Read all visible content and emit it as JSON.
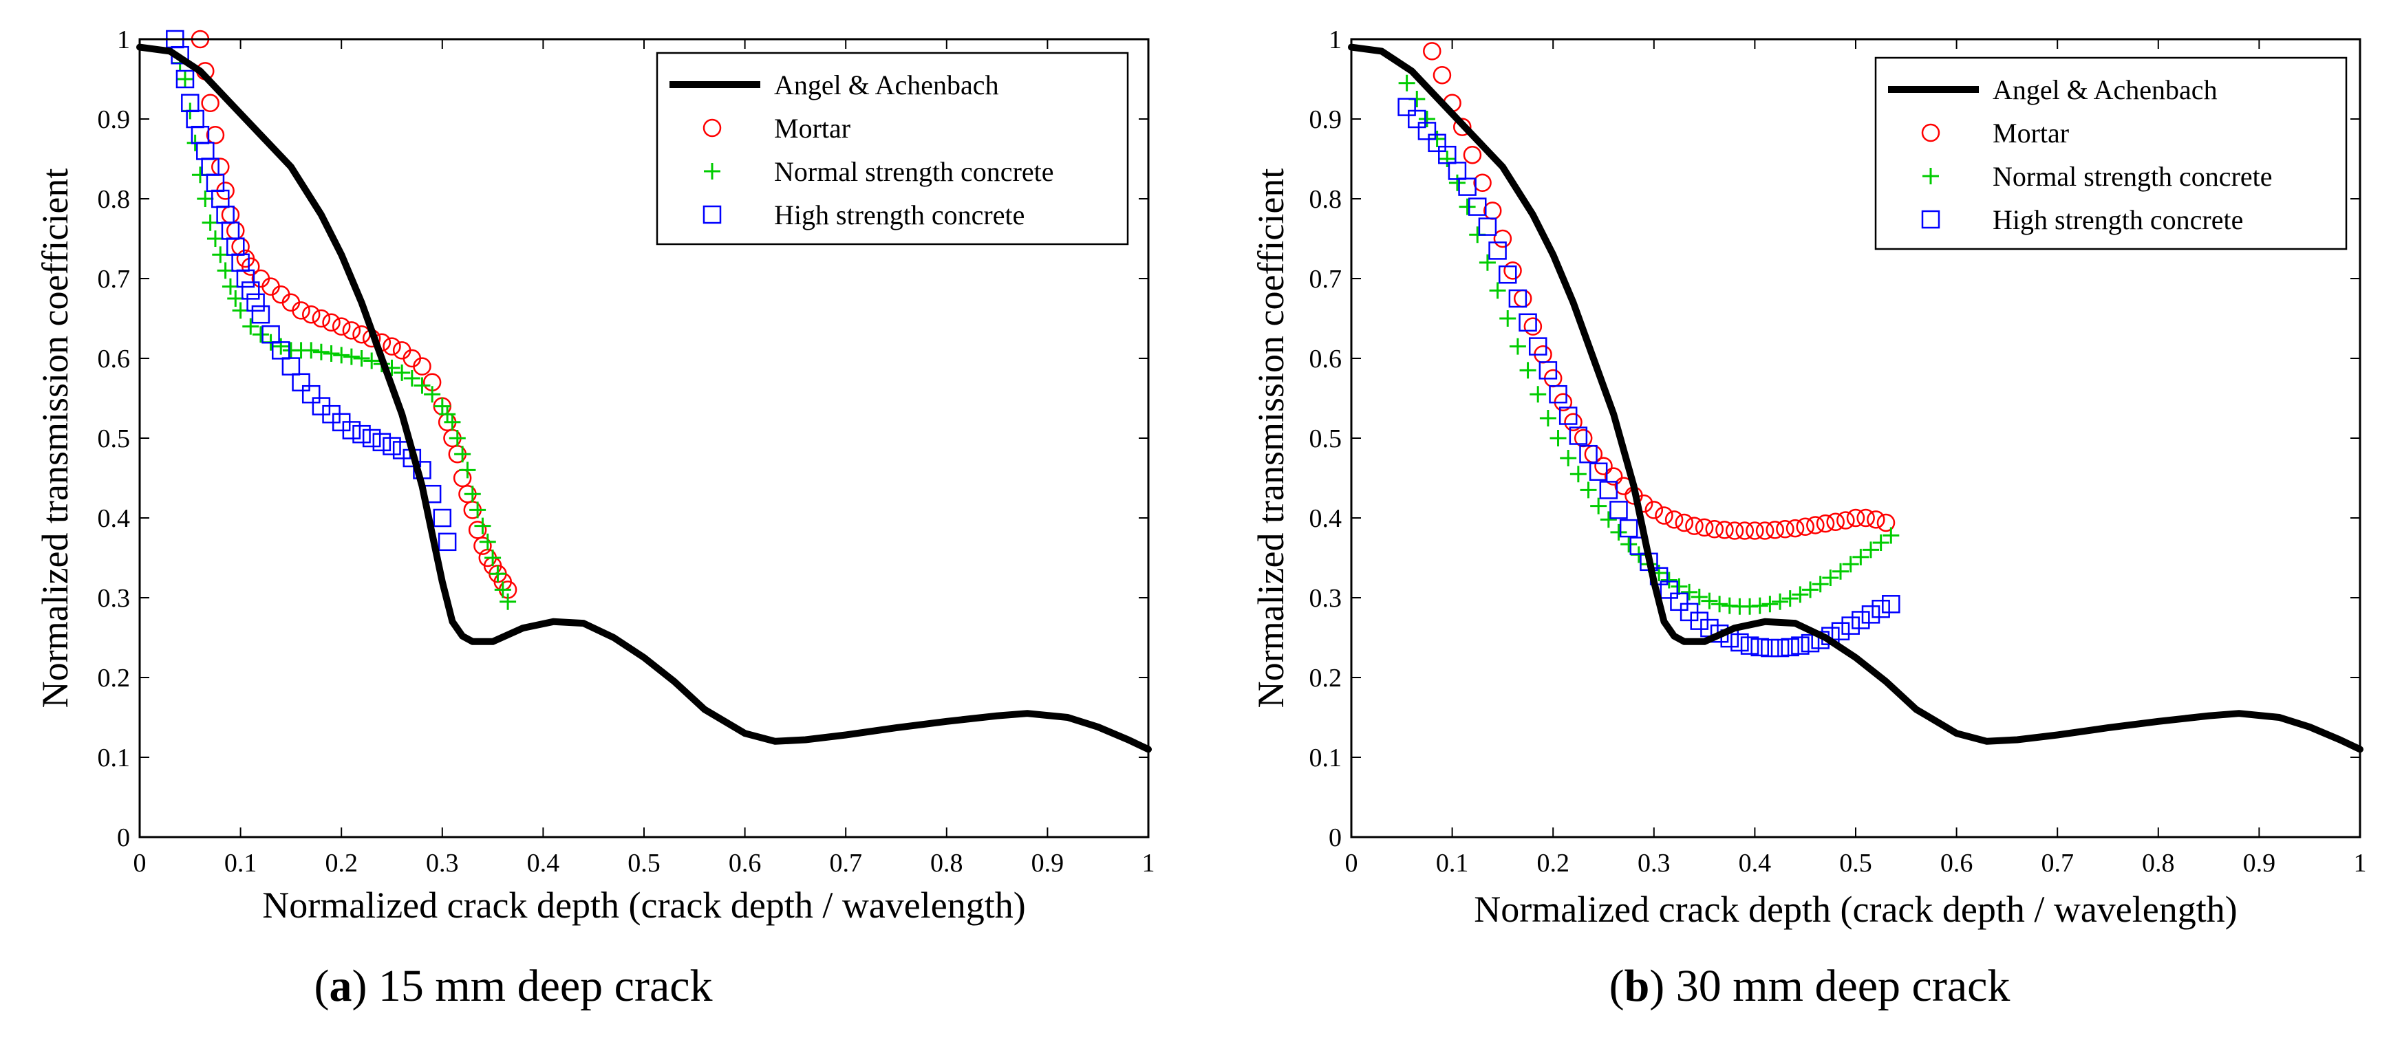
{
  "chart_data": [
    {
      "type": "line",
      "panel_id": "a",
      "caption": {
        "letter": "a",
        "text": "15 mm deep crack"
      },
      "title": "",
      "xlabel": "Normalized crack depth (crack depth / wavelength)",
      "ylabel": "Normalized transmission coefficient",
      "xlim": [
        0,
        1
      ],
      "ylim": [
        0,
        1
      ],
      "xticks": [
        0,
        0.1,
        0.2,
        0.3,
        0.4,
        0.5,
        0.6,
        0.7,
        0.8,
        0.9,
        1
      ],
      "yticks": [
        0,
        0.1,
        0.2,
        0.3,
        0.4,
        0.5,
        0.6,
        0.7,
        0.8,
        0.9,
        1
      ],
      "xtick_labels": [
        "0",
        "0.1",
        "0.2",
        "0.3",
        "0.4",
        "0.5",
        "0.6",
        "0.7",
        "0.8",
        "0.9",
        "1"
      ],
      "ytick_labels": [
        "0",
        "0.1",
        "0.2",
        "0.3",
        "0.4",
        "0.5",
        "0.6",
        "0.7",
        "0.8",
        "0.9",
        "1"
      ],
      "grid": false,
      "legend_position": "top-right",
      "series": [
        {
          "name": "Angel & Achenbach",
          "style": "line",
          "color": "#000000",
          "x": [
            0,
            0.03,
            0.06,
            0.09,
            0.12,
            0.15,
            0.18,
            0.2,
            0.22,
            0.24,
            0.26,
            0.28,
            0.29,
            0.3,
            0.31,
            0.32,
            0.33,
            0.35,
            0.38,
            0.41,
            0.44,
            0.47,
            0.5,
            0.53,
            0.56,
            0.6,
            0.63,
            0.66,
            0.7,
            0.75,
            0.8,
            0.85,
            0.88,
            0.92,
            0.95,
            0.98,
            1.0
          ],
          "y": [
            0.99,
            0.985,
            0.96,
            0.92,
            0.88,
            0.84,
            0.78,
            0.73,
            0.67,
            0.6,
            0.53,
            0.44,
            0.38,
            0.32,
            0.27,
            0.252,
            0.245,
            0.245,
            0.262,
            0.27,
            0.268,
            0.25,
            0.225,
            0.195,
            0.16,
            0.13,
            0.12,
            0.122,
            0.128,
            0.137,
            0.145,
            0.152,
            0.155,
            0.15,
            0.138,
            0.122,
            0.11
          ]
        },
        {
          "name": "Mortar",
          "style": "circle",
          "color": "#ff0000",
          "x": [
            0.06,
            0.065,
            0.07,
            0.075,
            0.08,
            0.085,
            0.09,
            0.095,
            0.1,
            0.105,
            0.11,
            0.12,
            0.13,
            0.14,
            0.15,
            0.16,
            0.17,
            0.18,
            0.19,
            0.2,
            0.21,
            0.22,
            0.23,
            0.24,
            0.25,
            0.26,
            0.27,
            0.28,
            0.29,
            0.3,
            0.305,
            0.31,
            0.315,
            0.32,
            0.325,
            0.33,
            0.335,
            0.34,
            0.345,
            0.35,
            0.355,
            0.36,
            0.365
          ],
          "y": [
            1.0,
            0.96,
            0.92,
            0.88,
            0.84,
            0.81,
            0.78,
            0.76,
            0.74,
            0.725,
            0.715,
            0.7,
            0.69,
            0.68,
            0.67,
            0.66,
            0.655,
            0.65,
            0.645,
            0.64,
            0.635,
            0.63,
            0.625,
            0.62,
            0.615,
            0.61,
            0.6,
            0.59,
            0.57,
            0.54,
            0.52,
            0.5,
            0.48,
            0.45,
            0.43,
            0.41,
            0.385,
            0.365,
            0.35,
            0.34,
            0.33,
            0.32,
            0.31
          ]
        },
        {
          "name": "Normal strength concrete",
          "style": "plus",
          "color": "#00cc00",
          "x": [
            0.04,
            0.045,
            0.05,
            0.055,
            0.06,
            0.065,
            0.07,
            0.075,
            0.08,
            0.085,
            0.09,
            0.095,
            0.1,
            0.11,
            0.12,
            0.13,
            0.14,
            0.15,
            0.16,
            0.17,
            0.18,
            0.19,
            0.2,
            0.21,
            0.22,
            0.23,
            0.24,
            0.25,
            0.26,
            0.27,
            0.28,
            0.29,
            0.3,
            0.305,
            0.31,
            0.315,
            0.32,
            0.325,
            0.33,
            0.335,
            0.34,
            0.345,
            0.35,
            0.355,
            0.36,
            0.365
          ],
          "y": [
            0.97,
            0.95,
            0.91,
            0.87,
            0.83,
            0.8,
            0.77,
            0.75,
            0.73,
            0.71,
            0.69,
            0.675,
            0.66,
            0.64,
            0.63,
            0.62,
            0.615,
            0.61,
            0.61,
            0.61,
            0.608,
            0.606,
            0.604,
            0.602,
            0.6,
            0.597,
            0.593,
            0.588,
            0.582,
            0.575,
            0.566,
            0.555,
            0.54,
            0.53,
            0.52,
            0.5,
            0.48,
            0.46,
            0.43,
            0.41,
            0.39,
            0.37,
            0.35,
            0.33,
            0.31,
            0.295
          ]
        },
        {
          "name": "High strength concrete",
          "style": "square",
          "color": "#0000ff",
          "x": [
            0.035,
            0.04,
            0.045,
            0.05,
            0.055,
            0.06,
            0.065,
            0.07,
            0.075,
            0.08,
            0.085,
            0.09,
            0.095,
            0.1,
            0.105,
            0.11,
            0.115,
            0.12,
            0.13,
            0.14,
            0.15,
            0.16,
            0.17,
            0.18,
            0.19,
            0.2,
            0.21,
            0.22,
            0.23,
            0.24,
            0.25,
            0.26,
            0.27,
            0.28,
            0.29,
            0.3,
            0.305
          ],
          "y": [
            1.0,
            0.98,
            0.95,
            0.92,
            0.9,
            0.88,
            0.86,
            0.84,
            0.82,
            0.8,
            0.78,
            0.76,
            0.74,
            0.72,
            0.7,
            0.685,
            0.67,
            0.655,
            0.63,
            0.61,
            0.59,
            0.57,
            0.555,
            0.54,
            0.53,
            0.52,
            0.51,
            0.505,
            0.5,
            0.495,
            0.49,
            0.485,
            0.475,
            0.46,
            0.43,
            0.4,
            0.37
          ]
        }
      ]
    },
    {
      "type": "line",
      "panel_id": "b",
      "caption": {
        "letter": "b",
        "text": "30 mm deep crack"
      },
      "title": "",
      "xlabel": "Normalized crack depth (crack depth / wavelength)",
      "ylabel": "Normalized transmission coefficient",
      "xlim": [
        0,
        1
      ],
      "ylim": [
        0,
        1
      ],
      "xticks": [
        0,
        0.1,
        0.2,
        0.3,
        0.4,
        0.5,
        0.6,
        0.7,
        0.8,
        0.9,
        1
      ],
      "yticks": [
        0,
        0.1,
        0.2,
        0.3,
        0.4,
        0.5,
        0.6,
        0.7,
        0.8,
        0.9,
        1
      ],
      "xtick_labels": [
        "0",
        "0.1",
        "0.2",
        "0.3",
        "0.4",
        "0.5",
        "0.6",
        "0.7",
        "0.8",
        "0.9",
        "1"
      ],
      "ytick_labels": [
        "0",
        "0.1",
        "0.2",
        "0.3",
        "0.4",
        "0.5",
        "0.6",
        "0.7",
        "0.8",
        "0.9",
        "1"
      ],
      "grid": false,
      "legend_position": "top-right",
      "series": [
        {
          "name": "Angel & Achenbach",
          "style": "line",
          "color": "#000000",
          "x": [
            0,
            0.03,
            0.06,
            0.09,
            0.12,
            0.15,
            0.18,
            0.2,
            0.22,
            0.24,
            0.26,
            0.28,
            0.29,
            0.3,
            0.31,
            0.32,
            0.33,
            0.35,
            0.38,
            0.41,
            0.44,
            0.47,
            0.5,
            0.53,
            0.56,
            0.6,
            0.63,
            0.66,
            0.7,
            0.75,
            0.8,
            0.85,
            0.88,
            0.92,
            0.95,
            0.98,
            1.0
          ],
          "y": [
            0.99,
            0.985,
            0.96,
            0.92,
            0.88,
            0.84,
            0.78,
            0.73,
            0.67,
            0.6,
            0.53,
            0.44,
            0.38,
            0.32,
            0.27,
            0.252,
            0.245,
            0.245,
            0.262,
            0.27,
            0.268,
            0.25,
            0.225,
            0.195,
            0.16,
            0.13,
            0.12,
            0.122,
            0.128,
            0.137,
            0.145,
            0.152,
            0.155,
            0.15,
            0.138,
            0.122,
            0.11
          ]
        },
        {
          "name": "Mortar",
          "style": "circle",
          "color": "#ff0000",
          "x": [
            0.08,
            0.09,
            0.1,
            0.11,
            0.12,
            0.13,
            0.14,
            0.15,
            0.16,
            0.17,
            0.18,
            0.19,
            0.2,
            0.21,
            0.22,
            0.23,
            0.24,
            0.25,
            0.26,
            0.27,
            0.28,
            0.29,
            0.3,
            0.31,
            0.32,
            0.33,
            0.34,
            0.35,
            0.36,
            0.37,
            0.38,
            0.39,
            0.4,
            0.41,
            0.42,
            0.43,
            0.44,
            0.45,
            0.46,
            0.47,
            0.48,
            0.49,
            0.5,
            0.51,
            0.52,
            0.53
          ],
          "y": [
            0.985,
            0.955,
            0.92,
            0.89,
            0.855,
            0.82,
            0.785,
            0.75,
            0.71,
            0.675,
            0.64,
            0.605,
            0.575,
            0.545,
            0.52,
            0.5,
            0.48,
            0.465,
            0.452,
            0.44,
            0.428,
            0.418,
            0.41,
            0.403,
            0.398,
            0.394,
            0.39,
            0.388,
            0.386,
            0.385,
            0.384,
            0.384,
            0.384,
            0.384,
            0.385,
            0.386,
            0.387,
            0.389,
            0.391,
            0.393,
            0.395,
            0.397,
            0.4,
            0.4,
            0.398,
            0.394
          ]
        },
        {
          "name": "Normal strength concrete",
          "style": "plus",
          "color": "#00cc00",
          "x": [
            0.055,
            0.065,
            0.075,
            0.085,
            0.095,
            0.105,
            0.115,
            0.125,
            0.135,
            0.145,
            0.155,
            0.165,
            0.175,
            0.185,
            0.195,
            0.205,
            0.215,
            0.225,
            0.235,
            0.245,
            0.255,
            0.265,
            0.275,
            0.285,
            0.295,
            0.305,
            0.315,
            0.325,
            0.335,
            0.345,
            0.355,
            0.365,
            0.375,
            0.385,
            0.395,
            0.405,
            0.415,
            0.425,
            0.435,
            0.445,
            0.455,
            0.465,
            0.475,
            0.485,
            0.495,
            0.505,
            0.515,
            0.525,
            0.535
          ],
          "y": [
            0.945,
            0.925,
            0.9,
            0.875,
            0.85,
            0.82,
            0.79,
            0.755,
            0.72,
            0.685,
            0.65,
            0.615,
            0.585,
            0.555,
            0.525,
            0.5,
            0.475,
            0.455,
            0.435,
            0.415,
            0.398,
            0.382,
            0.367,
            0.354,
            0.342,
            0.331,
            0.322,
            0.314,
            0.307,
            0.301,
            0.296,
            0.292,
            0.29,
            0.289,
            0.289,
            0.29,
            0.292,
            0.295,
            0.299,
            0.304,
            0.31,
            0.317,
            0.325,
            0.333,
            0.342,
            0.351,
            0.36,
            0.369,
            0.378
          ]
        },
        {
          "name": "High strength concrete",
          "style": "square",
          "color": "#0000ff",
          "x": [
            0.055,
            0.065,
            0.075,
            0.085,
            0.095,
            0.105,
            0.115,
            0.125,
            0.135,
            0.145,
            0.155,
            0.165,
            0.175,
            0.185,
            0.195,
            0.205,
            0.215,
            0.225,
            0.235,
            0.245,
            0.255,
            0.265,
            0.275,
            0.285,
            0.295,
            0.305,
            0.315,
            0.325,
            0.335,
            0.345,
            0.355,
            0.365,
            0.375,
            0.385,
            0.395,
            0.405,
            0.415,
            0.425,
            0.435,
            0.445,
            0.455,
            0.465,
            0.475,
            0.485,
            0.495,
            0.505,
            0.515,
            0.525,
            0.535
          ],
          "y": [
            0.915,
            0.9,
            0.885,
            0.87,
            0.855,
            0.835,
            0.815,
            0.79,
            0.765,
            0.735,
            0.705,
            0.675,
            0.645,
            0.615,
            0.585,
            0.555,
            0.528,
            0.503,
            0.48,
            0.458,
            0.435,
            0.41,
            0.387,
            0.365,
            0.345,
            0.327,
            0.31,
            0.295,
            0.282,
            0.271,
            0.262,
            0.255,
            0.249,
            0.244,
            0.24,
            0.238,
            0.237,
            0.237,
            0.238,
            0.24,
            0.243,
            0.247,
            0.252,
            0.258,
            0.265,
            0.272,
            0.279,
            0.286,
            0.292
          ]
        }
      ]
    }
  ]
}
